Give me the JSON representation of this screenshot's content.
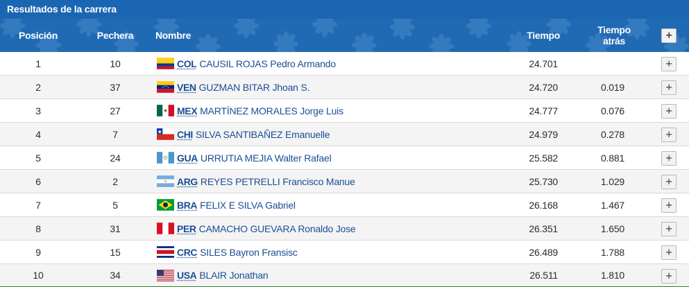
{
  "panel": {
    "title": "Resultados de la carrera"
  },
  "header": {
    "position": "Posición",
    "bib": "Pechera",
    "name": "Nombre",
    "time": "Tiempo",
    "behind_line1": "Tiempo",
    "behind_line2": "atrás",
    "expand_label": "+"
  },
  "colors": {
    "header_blue": "#1f6ab3",
    "title_blue": "#1a66b2",
    "link_blue": "#1a4e96",
    "bottom_border_green": "#2e7d32"
  },
  "rows": [
    {
      "pos": "1",
      "bib": "10",
      "code": "COL",
      "flag": "col-flag-icon",
      "name": "CAUSIL ROJAS Pedro Armando",
      "time": "24.701",
      "behind": "",
      "expand": "+"
    },
    {
      "pos": "2",
      "bib": "37",
      "code": "VEN",
      "flag": "ven-flag-icon",
      "name": "GUZMAN BITAR Jhoan S.",
      "time": "24.720",
      "behind": "0.019",
      "expand": "+"
    },
    {
      "pos": "3",
      "bib": "27",
      "code": "MEX",
      "flag": "mex-flag-icon",
      "name": "MARTÍNEZ MORALES Jorge Luis",
      "time": "24.777",
      "behind": "0.076",
      "expand": "+"
    },
    {
      "pos": "4",
      "bib": "7",
      "code": "CHI",
      "flag": "chi-flag-icon",
      "name": "SILVA SANTIBAÑEZ Emanuelle",
      "time": "24.979",
      "behind": "0.278",
      "expand": "+"
    },
    {
      "pos": "5",
      "bib": "24",
      "code": "GUA",
      "flag": "gua-flag-icon",
      "name": "URRUTIA MEJIA Walter Rafael",
      "time": "25.582",
      "behind": "0.881",
      "expand": "+"
    },
    {
      "pos": "6",
      "bib": "2",
      "code": "ARG",
      "flag": "arg-flag-icon",
      "name": "REYES PETRELLI Francisco Manue",
      "time": "25.730",
      "behind": "1.029",
      "expand": "+"
    },
    {
      "pos": "7",
      "bib": "5",
      "code": "BRA",
      "flag": "bra-flag-icon",
      "name": "FELIX E SILVA Gabriel",
      "time": "26.168",
      "behind": "1.467",
      "expand": "+"
    },
    {
      "pos": "8",
      "bib": "31",
      "code": "PER",
      "flag": "per-flag-icon",
      "name": "CAMACHO GUEVARA Ronaldo Jose",
      "time": "26.351",
      "behind": "1.650",
      "expand": "+"
    },
    {
      "pos": "9",
      "bib": "15",
      "code": "CRC",
      "flag": "crc-flag-icon",
      "name": "SILES Bayron Fransisc",
      "time": "26.489",
      "behind": "1.788",
      "expand": "+"
    },
    {
      "pos": "10",
      "bib": "34",
      "code": "USA",
      "flag": "usa-flag-icon",
      "name": "BLAIR Jonathan",
      "time": "26.511",
      "behind": "1.810",
      "expand": "+"
    }
  ]
}
